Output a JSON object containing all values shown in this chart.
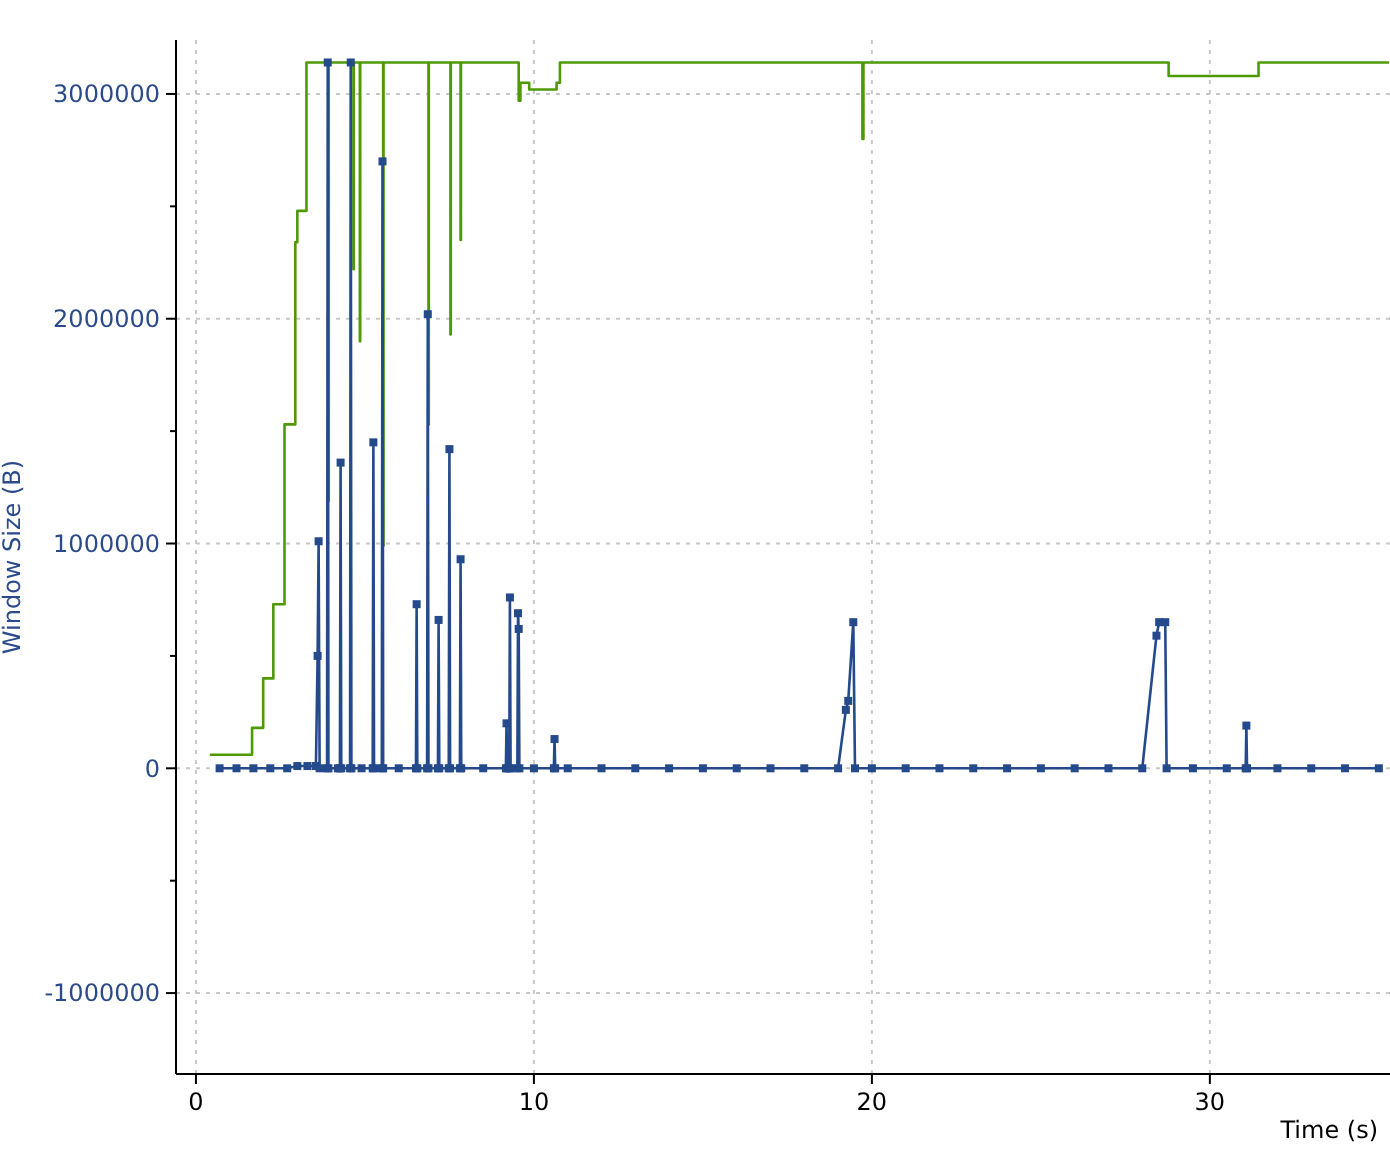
{
  "chart_data": {
    "type": "line",
    "xlabel": "Time (s)",
    "ylabel": "Window Size (B)",
    "xlim": [
      -0.59,
      35.33
    ],
    "ylim": [
      -1360000,
      3240000
    ],
    "xticks": [
      0,
      10,
      20,
      30
    ],
    "yticks": [
      -1000000,
      {
        "value": -500000,
        "label": null
      },
      0,
      {
        "value": 500000,
        "label": null
      },
      1000000,
      {
        "value": 1500000,
        "label": null
      },
      2000000,
      {
        "value": 2500000,
        "label": null
      },
      3000000
    ],
    "grid": true,
    "series": [
      {
        "type": "step",
        "color": "#4e9a06",
        "marker": "none",
        "x": [
          0.41,
          1.66,
          1.99,
          2.29,
          2.62,
          2.94,
          3.0,
          3.27,
          3.92,
          3.92,
          3.93,
          4.66,
          4.66,
          4.67,
          4.85,
          4.85,
          4.86,
          5.54,
          5.54,
          5.55,
          6.88,
          6.88,
          6.89,
          7.53,
          7.53,
          7.54,
          7.83,
          7.83,
          7.84,
          9.55,
          9.55,
          9.6,
          9.86,
          10.67,
          10.77,
          19.72,
          19.72,
          19.75,
          28.78,
          31.44,
          35.3
        ],
        "values": [
          60000,
          180000,
          400000,
          730000,
          1530000,
          2340000,
          2480000,
          3140000,
          3140000,
          1190000,
          3140000,
          3140000,
          2220000,
          3140000,
          3140000,
          1900000,
          3140000,
          3140000,
          990000,
          3140000,
          3140000,
          1530000,
          3140000,
          3140000,
          1930000,
          3140000,
          3140000,
          2350000,
          3140000,
          3140000,
          2970000,
          3050000,
          3020000,
          3050000,
          3140000,
          3140000,
          2800000,
          3140000,
          3080000,
          3140000,
          3140000
        ]
      },
      {
        "type": "line",
        "color": "#244a8c",
        "marker": "square",
        "x": [
          0.7,
          1.2,
          1.7,
          2.2,
          2.7,
          3.0,
          3.3,
          3.55,
          3.6,
          3.63,
          3.66,
          3.88,
          3.9,
          3.92,
          4.2,
          4.26,
          4.28,
          4.3,
          4.56,
          4.58,
          4.6,
          4.9,
          5.23,
          5.25,
          5.27,
          5.5,
          5.52,
          5.54,
          6.0,
          6.51,
          6.53,
          6.55,
          6.84,
          6.86,
          6.88,
          7.16,
          7.18,
          7.2,
          7.48,
          7.5,
          7.52,
          7.81,
          7.83,
          7.85,
          8.5,
          9.17,
          9.19,
          9.21,
          9.27,
          9.29,
          9.31,
          9.51,
          9.53,
          9.55,
          9.57,
          10.0,
          10.59,
          10.61,
          10.63,
          11,
          12,
          13,
          14,
          15,
          16,
          17,
          18,
          19,
          19.23,
          19.3,
          19.45,
          19.5,
          20,
          21,
          22,
          23,
          24,
          25,
          26,
          27,
          28,
          28.42,
          28.5,
          28.68,
          28.72,
          29.5,
          30.5,
          31.06,
          31.08,
          31.1,
          32,
          33,
          34,
          35
        ],
        "values": [
          0,
          0,
          0,
          0,
          0,
          10000,
          10000,
          10000,
          500000,
          1010000,
          0,
          0,
          3140000,
          0,
          0,
          0,
          1360000,
          0,
          0,
          3140000,
          0,
          0,
          0,
          1450000,
          0,
          0,
          2700000,
          0,
          0,
          0,
          730000,
          0,
          0,
          2020000,
          0,
          0,
          660000,
          0,
          0,
          1420000,
          0,
          0,
          930000,
          0,
          0,
          0,
          200000,
          0,
          0,
          760000,
          0,
          0,
          690000,
          620000,
          0,
          0,
          0,
          130000,
          0,
          0,
          0,
          0,
          0,
          0,
          0,
          0,
          0,
          0,
          260000,
          300000,
          650000,
          0,
          0,
          0,
          0,
          0,
          0,
          0,
          0,
          0,
          0,
          590000,
          650000,
          650000,
          0,
          0,
          0,
          0,
          190000,
          0,
          0,
          0,
          0,
          0
        ]
      }
    ]
  }
}
